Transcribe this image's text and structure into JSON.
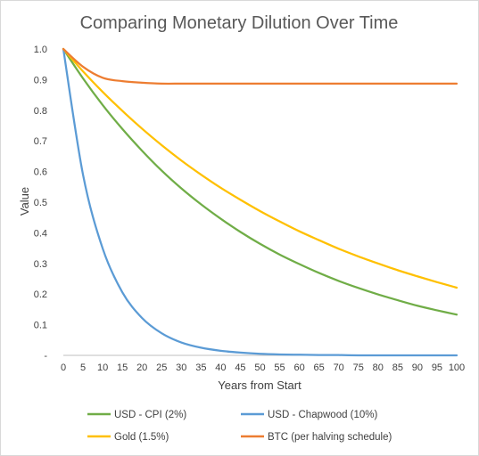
{
  "chart_data": {
    "type": "line",
    "title": "Comparing Monetary Dilution Over Time",
    "xlabel": "Years from Start",
    "ylabel": "Value",
    "xlim": [
      0,
      100
    ],
    "ylim": [
      0,
      1.0
    ],
    "xticks": [
      0,
      5,
      10,
      15,
      20,
      25,
      30,
      35,
      40,
      45,
      50,
      55,
      60,
      65,
      70,
      75,
      80,
      85,
      90,
      95,
      100
    ],
    "yticks": [
      0,
      0.1,
      0.2,
      0.3,
      0.4,
      0.5,
      0.6,
      0.7,
      0.8,
      0.9,
      1.0
    ],
    "ytick_labels": [
      "-",
      "0.1",
      "0.2",
      "0.3",
      "0.4",
      "0.5",
      "0.6",
      "0.7",
      "0.8",
      "0.9",
      "1.0"
    ],
    "grid": false,
    "legend_position": "bottom",
    "x": [
      0,
      5,
      10,
      15,
      20,
      25,
      30,
      35,
      40,
      45,
      50,
      55,
      60,
      65,
      70,
      75,
      80,
      85,
      90,
      95,
      100
    ],
    "series": [
      {
        "name": "USD - CPI (2%)",
        "color": "#70ad47",
        "values": [
          1.0,
          0.904,
          0.817,
          0.739,
          0.668,
          0.603,
          0.545,
          0.493,
          0.446,
          0.403,
          0.364,
          0.329,
          0.298,
          0.269,
          0.243,
          0.22,
          0.199,
          0.18,
          0.162,
          0.147,
          0.133
        ]
      },
      {
        "name": "USD - Chapwood (10%)",
        "color": "#5b9bd5",
        "values": [
          1.0,
          0.59,
          0.349,
          0.206,
          0.122,
          0.072,
          0.042,
          0.025,
          0.015,
          0.009,
          0.005,
          0.003,
          0.002,
          0.001,
          0.001,
          0.0,
          0.0,
          0.0,
          0.0,
          0.0,
          0.0
        ]
      },
      {
        "name": "Gold (1.5%)",
        "color": "#ffc000",
        "values": [
          1.0,
          0.927,
          0.86,
          0.798,
          0.74,
          0.686,
          0.636,
          0.59,
          0.547,
          0.508,
          0.471,
          0.437,
          0.405,
          0.376,
          0.348,
          0.323,
          0.3,
          0.278,
          0.258,
          0.239,
          0.221
        ]
      },
      {
        "name": "BTC (per halving schedule)",
        "color": "#ed7d31",
        "values": [
          1.0,
          0.942,
          0.906,
          0.895,
          0.89,
          0.887,
          0.887,
          0.887,
          0.887,
          0.887,
          0.887,
          0.887,
          0.887,
          0.887,
          0.887,
          0.887,
          0.887,
          0.887,
          0.887,
          0.887,
          0.887
        ]
      }
    ]
  }
}
